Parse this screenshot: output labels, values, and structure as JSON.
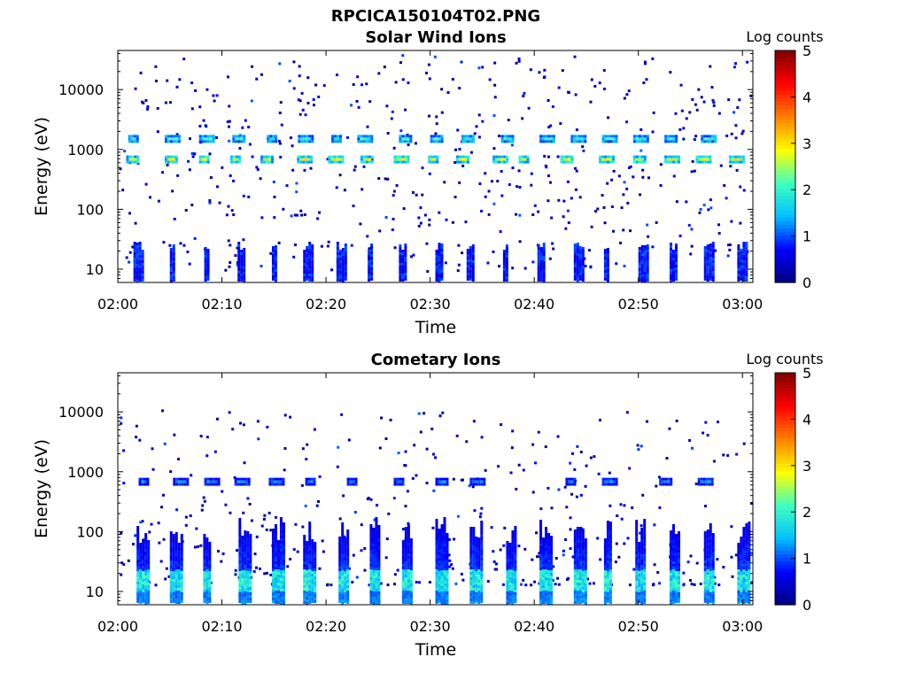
{
  "figure": {
    "title": "RPCICA150104T02.PNG"
  },
  "colormap": {
    "stops": [
      "#00007f",
      "#0000ff",
      "#00bfff",
      "#40ffbf",
      "#ffff00",
      "#ff8000",
      "#ff0000",
      "#7f0000"
    ]
  },
  "chart_data": [
    {
      "type": "heatmap",
      "title": "Solar Wind Ions",
      "xlabel": "Time",
      "ylabel": "Energy (eV)",
      "x_ticks": [
        "02:00",
        "02:10",
        "02:20",
        "02:30",
        "02:40",
        "02:50",
        "03:00"
      ],
      "x_tick_minutes": [
        0,
        10,
        20,
        30,
        40,
        50,
        60
      ],
      "xlim_minutes": [
        0,
        61
      ],
      "y_scale": "log",
      "y_ticks": [
        "10",
        "100",
        "1000",
        "10000"
      ],
      "y_tick_values": [
        10,
        100,
        1000,
        10000
      ],
      "ylim": [
        6,
        45000
      ],
      "colorbar": {
        "label": "Log counts",
        "ticks": [
          "0",
          "1",
          "2",
          "3",
          "4",
          "5"
        ],
        "range": [
          0,
          5
        ]
      },
      "bands": [
        {
          "energy": 680,
          "value": 2.6,
          "minutes": [
            0.8,
            4.5,
            7.8,
            10.8,
            13.7,
            17.2,
            20.2,
            23.3,
            26.5,
            29.8,
            32.5,
            36.0,
            38.5,
            42.5,
            46.2,
            49.5,
            52.5,
            55.5,
            58.7
          ]
        },
        {
          "energy": 1500,
          "value": 1.9,
          "minutes": [
            1.0,
            4.5,
            7.8,
            11.0,
            14.3,
            17.3,
            20.5,
            23.0,
            27.0,
            30.0,
            33.0,
            36.8,
            40.5,
            43.5,
            46.5,
            49.5,
            52.5,
            56.0
          ]
        },
        {
          "energy": 12,
          "value": 0.8,
          "minutes": [
            1.5,
            5.0,
            8.3,
            11.5,
            14.8,
            17.8,
            21.0,
            24.0,
            27.0,
            30.5,
            33.5,
            37.0,
            40.3,
            43.8,
            46.7,
            50.0,
            53.0,
            56.3,
            59.5
          ]
        }
      ]
    },
    {
      "type": "heatmap",
      "title": "Cometary Ions",
      "xlabel": "Time",
      "ylabel": "Energy (eV)",
      "x_ticks": [
        "02:00",
        "02:10",
        "02:20",
        "02:30",
        "02:40",
        "02:50",
        "03:00"
      ],
      "x_tick_minutes": [
        0,
        10,
        20,
        30,
        40,
        50,
        60
      ],
      "xlim_minutes": [
        0,
        61
      ],
      "y_scale": "log",
      "y_ticks": [
        "10",
        "100",
        "1000",
        "10000"
      ],
      "y_tick_values": [
        10,
        100,
        1000,
        10000
      ],
      "ylim": [
        6,
        45000
      ],
      "colorbar": {
        "label": "Log counts",
        "ticks": [
          "0",
          "1",
          "2",
          "3",
          "4",
          "5"
        ],
        "range": [
          0,
          5
        ]
      },
      "bands": [
        {
          "energy": 16,
          "value": 1.8,
          "minutes": [
            1.8,
            5.0,
            8.2,
            11.6,
            14.8,
            17.8,
            21.2,
            24.2,
            27.3,
            30.5,
            33.8,
            37.3,
            40.5,
            43.8,
            46.7,
            49.7,
            53.0,
            56.3,
            59.5
          ]
        },
        {
          "energy": 680,
          "value": 1.2,
          "minutes": [
            2.0,
            5.3,
            8.3,
            11.2,
            14.5,
            18.0,
            22.0,
            26.5,
            30.5,
            33.8,
            43.0,
            46.5,
            52.0,
            55.7
          ]
        }
      ]
    }
  ]
}
